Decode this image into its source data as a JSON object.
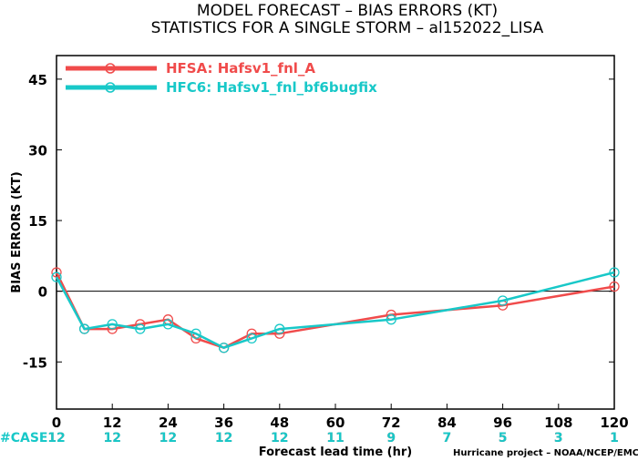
{
  "chart_data": {
    "type": "line",
    "title": "MODEL FORECAST – BIAS ERRORS (KT)",
    "subtitle": "STATISTICS FOR A SINGLE STORM – al152022_LISA",
    "xlabel": "Forecast lead time (hr)",
    "ylabel": "BIAS ERRORS (KT)",
    "xlim": [
      0,
      120
    ],
    "ylim": [
      -25,
      50
    ],
    "x_ticks": [
      0,
      12,
      24,
      36,
      48,
      60,
      72,
      84,
      96,
      108,
      120
    ],
    "y_ticks": [
      -15,
      0,
      15,
      30,
      45
    ],
    "zero_line": 0,
    "grid": false,
    "legend_position": "top-left",
    "series": [
      {
        "name": "HFSA: Hafsv1_fnl_A",
        "color": "#f04b4b",
        "x": [
          0,
          6,
          12,
          18,
          24,
          30,
          36,
          42,
          48,
          72,
          96,
          120
        ],
        "y": [
          4,
          -8,
          -8,
          -7,
          -6,
          -10,
          -12,
          -9,
          -9,
          -5,
          -3,
          1
        ]
      },
      {
        "name": "HFC6: Hafsv1_fnl_bf6bugfix",
        "color": "#18c8c8",
        "x": [
          0,
          6,
          12,
          18,
          24,
          30,
          36,
          42,
          48,
          72,
          96,
          120
        ],
        "y": [
          3,
          -8,
          -7,
          -8,
          -7,
          -9,
          -12,
          -10,
          -8,
          -6,
          -2,
          4
        ]
      }
    ],
    "case_label": "#CASE",
    "case_counts": [
      {
        "x": 0,
        "hfsa": "12",
        "hfc6": "12"
      },
      {
        "x": 12,
        "hfsa": "12",
        "hfc6": "12"
      },
      {
        "x": 24,
        "hfsa": "12",
        "hfc6": "12"
      },
      {
        "x": 36,
        "hfsa": "12",
        "hfc6": "12"
      },
      {
        "x": 48,
        "hfsa": "12",
        "hfc6": "12"
      },
      {
        "x": 60,
        "hfsa": "11",
        "hfc6": "11"
      },
      {
        "x": 72,
        "hfsa": "9",
        "hfc6": "9"
      },
      {
        "x": 84,
        "hfsa": "7",
        "hfc6": "7"
      },
      {
        "x": 96,
        "hfsa": "5",
        "hfc6": "5"
      },
      {
        "x": 108,
        "hfsa": "3",
        "hfc6": "3"
      },
      {
        "x": 120,
        "hfsa": "1",
        "hfc6": "1"
      }
    ],
    "credit": "Hurricane project – NOAA/NCEP/EMC"
  }
}
